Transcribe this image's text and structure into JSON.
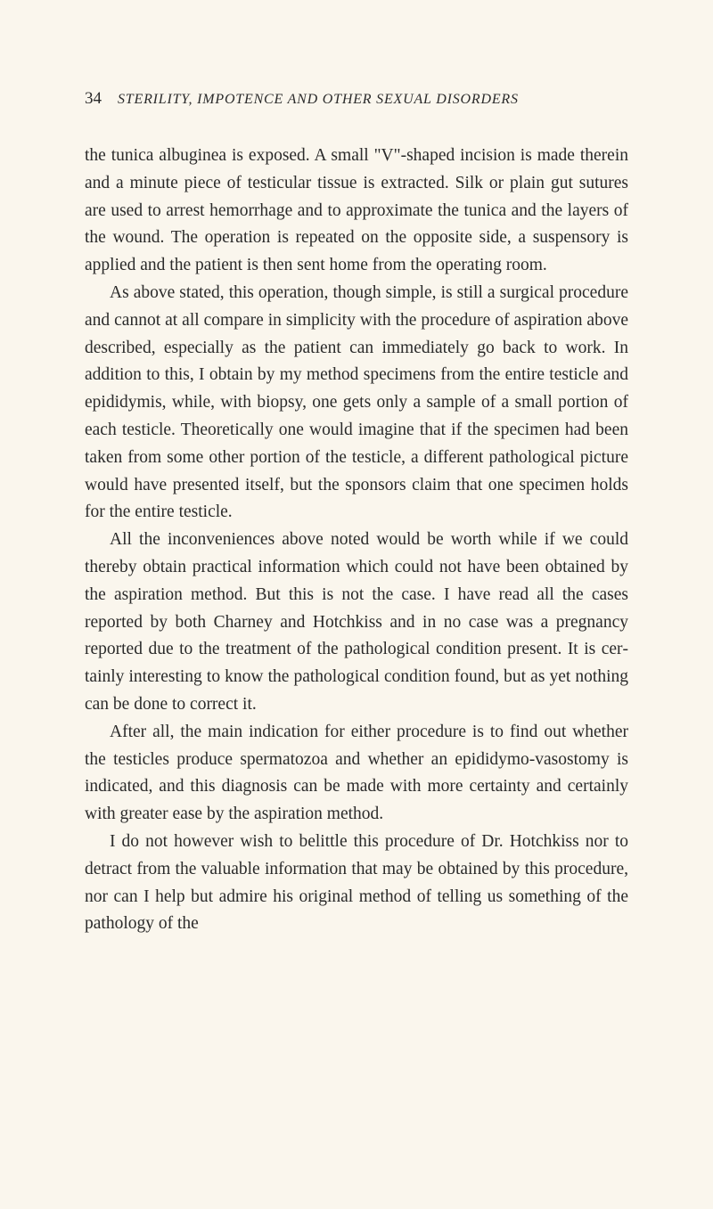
{
  "header": {
    "page_number": "34",
    "running_title": "STERILITY, IMPOTENCE AND OTHER SEXUAL DISORDERS"
  },
  "paragraphs": {
    "p1": "the tunica albuginea is exposed. A small \"V\"-shaped incision is made therein and a minute piece of testicular tissue is ex­tracted. Silk or plain gut sutures are used to arrest hemorrhage and to approximate the tunica and the layers of the wound. The operation is repeated on the opposite side, a suspensory is applied and the patient is then sent home from the operating room.",
    "p2": "As above stated, this operation, though simple, is still a sur­gical procedure and cannot at all compare in simplicity with the procedure of aspiration above described, especially as the patient can immediately go back to work. In addition to this, I obtain by my method specimens from the entire testicle and epididymis, while, with biopsy, one gets only a sample of a small portion of each testicle. Theoretically one would imagine that if the speci­men had been taken from some other portion of the testicle, a different pathological picture would have presented itself, but the sponsors claim that one specimen holds for the entire testicle.",
    "p3": "All the inconveniences above noted would be worth while if we could thereby obtain practical information which could not have been obtained by the aspiration method. But this is not the case. I have read all the cases reported by both Charney and Hotchkiss and in no case was a pregnancy reported due to the treatment of the pathological condition present. It is cer­tainly interesting to know the pathological condition found, but as yet nothing can be done to correct it.",
    "p4": "After all, the main indication for either procedure is to find out whether the testicles produce spermatozoa and whether an epididymo-vasostomy is indicated, and this diagnosis can be made with more certainty and certainly with greater ease by the aspiration method.",
    "p5": "I do not however wish to belittle this procedure of Dr. Hotchkiss nor to detract from the valuable information that may be obtained by this procedure, nor can I help but admire his original method of telling us something of the pathology of the"
  },
  "colors": {
    "background": "#faf6ed",
    "text": "#2a2a2a"
  },
  "typography": {
    "body_fontsize": 19.5,
    "header_number_fontsize": 19,
    "header_title_fontsize": 16,
    "line_height": 1.58,
    "text_indent": 28
  }
}
